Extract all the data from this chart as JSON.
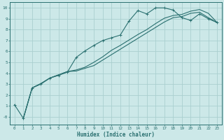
{
  "xlabel": "Humidex (Indice chaleur)",
  "bg_color": "#cce8e8",
  "grid_color": "#aacfcf",
  "line_color": "#2a7070",
  "xlim": [
    -0.5,
    23.5
  ],
  "ylim": [
    -0.7,
    10.5
  ],
  "xticks": [
    0,
    1,
    2,
    3,
    4,
    5,
    6,
    7,
    8,
    9,
    10,
    11,
    12,
    13,
    14,
    15,
    16,
    17,
    18,
    19,
    20,
    21,
    22,
    23
  ],
  "yticks": [
    0,
    1,
    2,
    3,
    4,
    5,
    6,
    7,
    8,
    9,
    10
  ],
  "ytick_labels": [
    "-0",
    "1",
    "2",
    "3",
    "4",
    "5",
    "6",
    "7",
    "8",
    "9",
    "10"
  ],
  "line1_x": [
    0,
    1,
    2,
    3,
    4,
    5,
    6,
    7,
    8,
    9,
    10,
    11,
    12,
    13,
    14,
    15,
    16,
    17,
    18,
    19,
    20,
    21,
    22,
    23
  ],
  "line1_y": [
    1.1,
    -0.15,
    2.65,
    3.0,
    3.55,
    3.8,
    4.1,
    5.45,
    6.05,
    6.55,
    7.0,
    7.25,
    7.5,
    8.8,
    9.75,
    9.45,
    10.0,
    10.0,
    9.8,
    9.1,
    8.85,
    9.45,
    9.0,
    8.65
  ],
  "line2_x": [
    1,
    2,
    3,
    4,
    5,
    6,
    7,
    8,
    9,
    10,
    11,
    12,
    13,
    14,
    15,
    16,
    17,
    18,
    19,
    20,
    21,
    22,
    23
  ],
  "line2_y": [
    -0.15,
    2.65,
    3.05,
    3.55,
    3.85,
    4.15,
    4.2,
    4.45,
    4.7,
    5.2,
    5.7,
    6.2,
    6.7,
    7.2,
    7.7,
    8.2,
    8.7,
    9.1,
    9.2,
    9.5,
    9.6,
    9.1,
    8.65
  ],
  "line3_x": [
    1,
    2,
    3,
    4,
    5,
    6,
    7,
    8,
    9,
    10,
    11,
    12,
    13,
    14,
    15,
    16,
    17,
    18,
    19,
    20,
    21,
    22,
    23
  ],
  "line3_y": [
    -0.15,
    2.65,
    3.05,
    3.55,
    3.85,
    4.15,
    4.3,
    4.55,
    5.0,
    5.5,
    6.1,
    6.55,
    7.05,
    7.55,
    8.0,
    8.55,
    9.05,
    9.3,
    9.4,
    9.7,
    9.85,
    9.5,
    8.65
  ]
}
